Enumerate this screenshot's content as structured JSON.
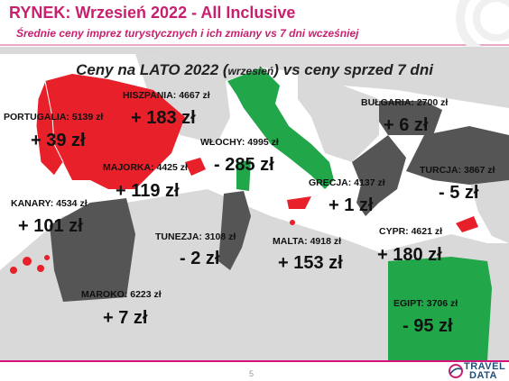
{
  "header": {
    "title": "RYNEK: Wrzesień 2022 - All Inclusive",
    "subtitle": "Średnie ceny imprez turystycznych i ich zmiany vs 7 dni wcześniej"
  },
  "map": {
    "heading_part1": "Ceny na LATO 2022 (",
    "heading_small": "wrzesień",
    "heading_part2": ") vs ceny sprzed 7 dni",
    "destinations": [
      {
        "key": "portugalia",
        "label": "PORTUGALIA: 5139 zł",
        "change": "+ 39 zł"
      },
      {
        "key": "hiszpania",
        "label": "HISZPANIA: 4667 zł",
        "change": "+ 183 zł"
      },
      {
        "key": "majorka",
        "label": "MAJORKA: 4425 zł",
        "change": "+ 119 zł"
      },
      {
        "key": "wlochy",
        "label": "WŁOCHY: 4995 zł",
        "change": "- 285 zł"
      },
      {
        "key": "bulgaria",
        "label": "BUŁGARIA: 2700 zł",
        "change": "+ 6 zł"
      },
      {
        "key": "turcja",
        "label": "TURCJA: 3867 zł",
        "change": "- 5 zł"
      },
      {
        "key": "grecja",
        "label": "GRECJA: 4137 zł",
        "change": "+ 1 zł"
      },
      {
        "key": "kanary",
        "label": "KANARY: 4534 zł",
        "change": "+ 101 zł"
      },
      {
        "key": "tunezja",
        "label": "TUNEZJA: 3108 zł",
        "change": "- 2 zł"
      },
      {
        "key": "malta",
        "label": "MALTA: 4918 zł",
        "change": "+ 153 zł"
      },
      {
        "key": "cypr",
        "label": "CYPR: 4621 zł",
        "change": "+ 180 zł"
      },
      {
        "key": "maroko",
        "label": "MAROKO: 6223 zł",
        "change": "+ 7 zł"
      },
      {
        "key": "egipt",
        "label": "EGIPT: 3706 zł",
        "change": "- 95 zł"
      }
    ]
  },
  "colors": {
    "accent": "#c8206e",
    "increase": "#e8202a",
    "decrease": "#22a64a",
    "neutral": "#555555",
    "land": "#d9d9d9"
  },
  "footer": {
    "page_number": "5",
    "logo_line1": "TRAVEL",
    "logo_line2": "DATA"
  }
}
